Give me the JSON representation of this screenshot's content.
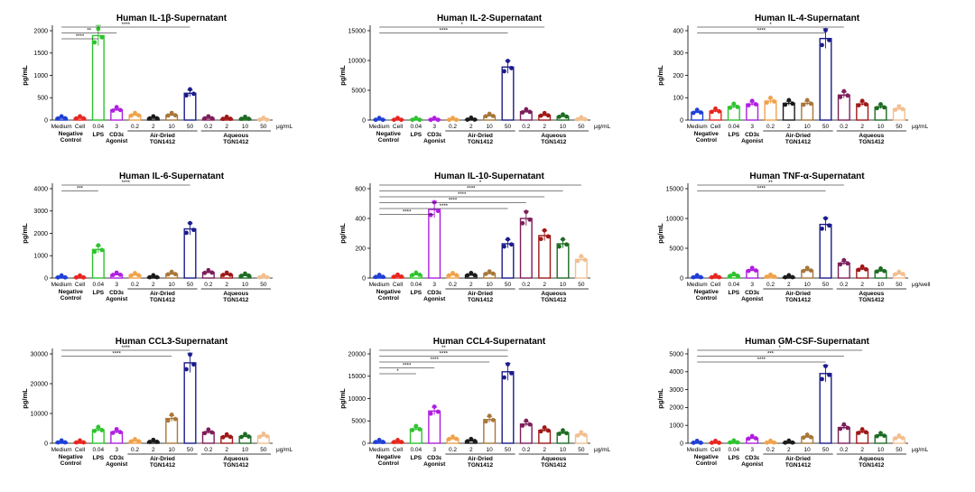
{
  "figure": {
    "shared": {
      "conditions": [
        "Medium",
        "Cell",
        "0.04",
        "3",
        "0.2",
        "2",
        "10",
        "50",
        "0.2",
        "2",
        "10",
        "50"
      ],
      "colors": [
        "#1f3fd6",
        "#e8251f",
        "#2fc32f",
        "#b01ee0",
        "#f0a24a",
        "#1a1a1a",
        "#a8773a",
        "#1c1c8c",
        "#7d1e5a",
        "#a01818",
        "#1e6b24",
        "#f2bf90"
      ],
      "group_labels": {
        "negative_control": "Negative Control",
        "lps": "LPS",
        "cd3e": "CD3ε Agonist",
        "air_dried": "Air-Dried TGN1412",
        "aqueous": "Aqueous TGN1412"
      },
      "ylabel": "pg/mL",
      "sig_labels": [
        "*",
        "**",
        "***",
        "****"
      ]
    }
  },
  "chart_data": [
    {
      "type": "bar",
      "title": "Human IL-1β-Supernatant",
      "ylabel": "pg/mL",
      "unit": "μg/mL",
      "ylim": [
        0,
        2000
      ],
      "yticks": [
        0,
        500,
        1000,
        1500,
        2000
      ],
      "values": [
        40,
        40,
        1890,
        230,
        110,
        40,
        110,
        600,
        40,
        30,
        30,
        10
      ],
      "sig": [
        {
          "from": 0,
          "to": 7,
          "label": "****"
        },
        {
          "from": 0,
          "to": 3,
          "label": "**"
        },
        {
          "from": 0,
          "to": 2,
          "label": "****"
        }
      ]
    },
    {
      "type": "bar",
      "title": "Human IL-2-Supernatant",
      "ylabel": "pg/mL",
      "unit": "μg/mL",
      "ylim": [
        0,
        15000
      ],
      "yticks": [
        0,
        5000,
        10000,
        15000
      ],
      "values": [
        50,
        50,
        50,
        50,
        50,
        80,
        700,
        8900,
        1400,
        800,
        600,
        150
      ],
      "sig": [
        {
          "from": 0,
          "to": 9,
          "label": "*"
        },
        {
          "from": 0,
          "to": 7,
          "label": "****"
        }
      ]
    },
    {
      "type": "bar",
      "title": "Human IL-4-Supernatant",
      "ylabel": "pg/mL",
      "unit": "μg/mL",
      "ylim": [
        0,
        400
      ],
      "yticks": [
        0,
        100,
        200,
        300,
        400
      ],
      "values": [
        35,
        40,
        60,
        72,
        85,
        75,
        75,
        365,
        112,
        72,
        58,
        50
      ],
      "sig": [
        {
          "from": 0,
          "to": 8,
          "label": "*"
        },
        {
          "from": 0,
          "to": 7,
          "label": "****"
        }
      ]
    },
    {
      "type": "bar",
      "title": "Human IL-6-Supernatant",
      "ylabel": "pg/mL",
      "unit": "",
      "ylim": [
        0,
        4000
      ],
      "yticks": [
        0,
        1000,
        2000,
        3000,
        4000
      ],
      "values": [
        30,
        30,
        1280,
        150,
        130,
        40,
        180,
        2200,
        250,
        150,
        110,
        40
      ],
      "sig": [
        {
          "from": 0,
          "to": 7,
          "label": "****"
        },
        {
          "from": 0,
          "to": 2,
          "label": "***"
        }
      ]
    },
    {
      "type": "bar",
      "title": "Human IL-10-Supernatant",
      "ylabel": "pg/mL",
      "unit": "",
      "ylim": [
        0,
        600
      ],
      "yticks": [
        0,
        200,
        400,
        600
      ],
      "values": [
        8,
        10,
        22,
        460,
        20,
        20,
        30,
        230,
        400,
        285,
        230,
        125
      ],
      "sig": [
        {
          "from": 0,
          "to": 11,
          "label": "*"
        },
        {
          "from": 0,
          "to": 10,
          "label": "****"
        },
        {
          "from": 0,
          "to": 9,
          "label": "****"
        },
        {
          "from": 0,
          "to": 8,
          "label": "****"
        },
        {
          "from": 0,
          "to": 7,
          "label": "****"
        },
        {
          "from": 0,
          "to": 3,
          "label": "****"
        }
      ]
    },
    {
      "type": "bar",
      "title": "Human TNF-α-Supernatant",
      "ylabel": "pg/mL",
      "unit": "μg/well",
      "ylim": [
        0,
        15000
      ],
      "yticks": [
        0,
        5000,
        10000,
        15000
      ],
      "values": [
        150,
        150,
        400,
        1300,
        250,
        150,
        1300,
        9000,
        2500,
        1500,
        1200,
        700
      ],
      "sig": [
        {
          "from": 0,
          "to": 8,
          "label": "**"
        },
        {
          "from": 0,
          "to": 7,
          "label": "****"
        }
      ]
    },
    {
      "type": "bar",
      "title": "Human CCL3-Supernatant",
      "ylabel": "pg/mL",
      "unit": "μg/mL",
      "ylim": [
        0,
        30000
      ],
      "yticks": [
        0,
        10000,
        20000,
        30000
      ],
      "values": [
        300,
        300,
        4500,
        3800,
        700,
        500,
        8300,
        27000,
        3700,
        2200,
        2300,
        2400
      ],
      "sig": [
        {
          "from": 0,
          "to": 7,
          "label": "****"
        },
        {
          "from": 0,
          "to": 6,
          "label": "****"
        }
      ]
    },
    {
      "type": "bar",
      "title": "Human CCL4-Supernatant",
      "ylabel": "pg/mL",
      "unit": "μg/mL",
      "ylim": [
        0,
        20000
      ],
      "yticks": [
        0,
        5000,
        10000,
        15000,
        20000
      ],
      "values": [
        300,
        300,
        3200,
        7200,
        1000,
        500,
        5300,
        16000,
        4300,
        2900,
        2300,
        1900
      ],
      "sig": [
        {
          "from": 0,
          "to": 7,
          "label": "**"
        },
        {
          "from": 0,
          "to": 7,
          "label": "****"
        },
        {
          "from": 0,
          "to": 6,
          "label": "****"
        },
        {
          "from": 0,
          "to": 3,
          "label": "****"
        },
        {
          "from": 0,
          "to": 2,
          "label": "*"
        }
      ]
    },
    {
      "type": "bar",
      "title": "Human GM-CSF-Supernatant",
      "ylabel": "pg/mL",
      "unit": "μg/mL",
      "ylim": [
        0,
        5000
      ],
      "yticks": [
        0,
        1000,
        2000,
        3000,
        4000,
        5000
      ],
      "values": [
        30,
        30,
        50,
        280,
        40,
        40,
        350,
        3900,
        880,
        630,
        430,
        300
      ],
      "sig": [
        {
          "from": 0,
          "to": 9,
          "label": "*"
        },
        {
          "from": 0,
          "to": 8,
          "label": "***"
        },
        {
          "from": 0,
          "to": 7,
          "label": "****"
        }
      ]
    }
  ]
}
